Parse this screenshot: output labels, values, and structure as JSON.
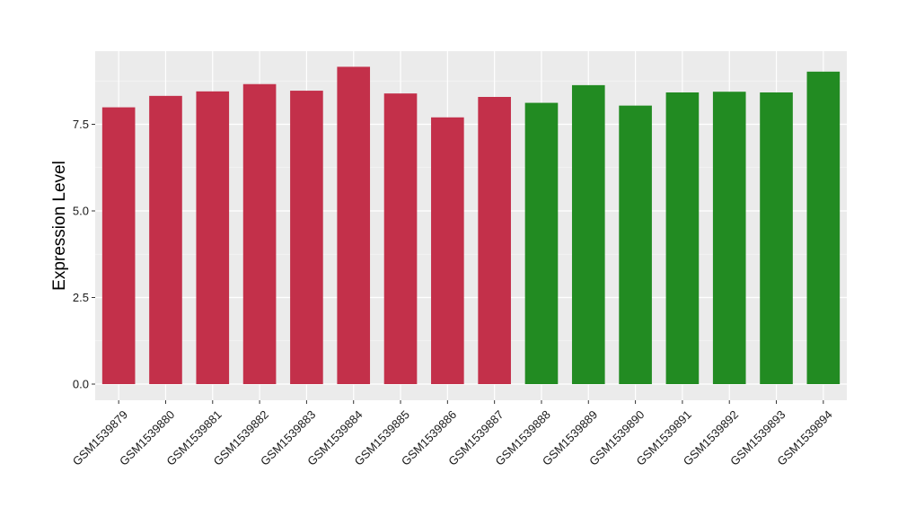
{
  "chart_data": {
    "type": "bar",
    "title": "",
    "xlabel": "",
    "ylabel": "Expression Level",
    "ylim": [
      0,
      9.6
    ],
    "y_ticks": [
      0,
      2.5,
      5,
      7.5
    ],
    "y_tick_labels": [
      "0.0",
      "2.5",
      "5.0",
      "7.5"
    ],
    "grid": true,
    "background": "#EBEBEB",
    "categories": [
      "GSM1539879",
      "GSM1539880",
      "GSM1539881",
      "GSM1539882",
      "GSM1539883",
      "GSM1539884",
      "GSM1539885",
      "GSM1539886",
      "GSM1539887",
      "GSM1539888",
      "GSM1539889",
      "GSM1539890",
      "GSM1539891",
      "GSM1539892",
      "GSM1539893",
      "GSM1539894"
    ],
    "values": [
      7.99,
      8.32,
      8.45,
      8.66,
      8.47,
      9.16,
      8.39,
      7.7,
      8.29,
      8.12,
      8.63,
      8.04,
      8.42,
      8.44,
      8.42,
      9.02
    ],
    "colors": [
      "#C3304A",
      "#C3304A",
      "#C3304A",
      "#C3304A",
      "#C3304A",
      "#C3304A",
      "#C3304A",
      "#C3304A",
      "#C3304A",
      "#228B22",
      "#228B22",
      "#228B22",
      "#228B22",
      "#228B22",
      "#228B22",
      "#228B22"
    ]
  }
}
